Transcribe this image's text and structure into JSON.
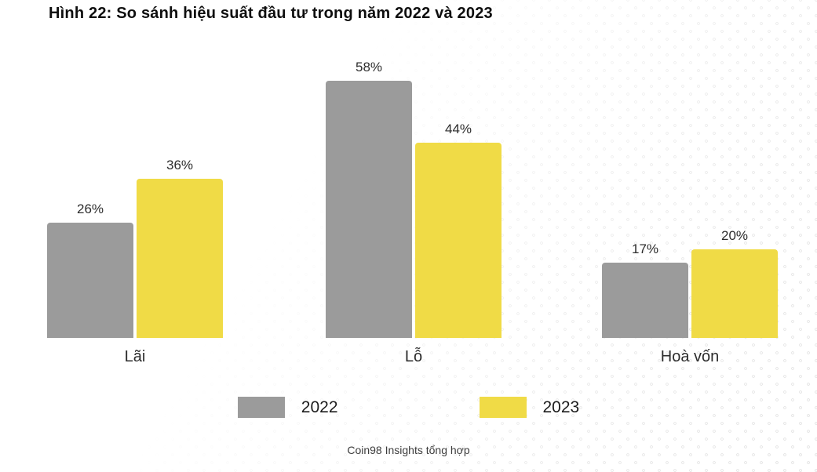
{
  "title": "Hình 22: So sánh hiệu suất đầu tư trong năm 2022 và 2023",
  "source": "Coin98 Insights tổng hợp",
  "colors": {
    "background": "#ffffff",
    "bar_2022": "#9b9b9b",
    "bar_2023": "#f0db46",
    "title_text": "#0e0e0e",
    "label_text": "#2c2c2c",
    "dot_pattern": "#e7e7e7"
  },
  "chart_data": {
    "type": "bar",
    "title": "Hình 22: So sánh hiệu suất đầu tư trong năm 2022 và 2023",
    "categories": [
      "Lãi",
      "Lỗ",
      "Hoà vốn"
    ],
    "series": [
      {
        "name": "2022",
        "color": "#9b9b9b",
        "values": [
          26,
          58,
          17
        ],
        "labels": [
          "26%",
          "58%",
          "17%"
        ]
      },
      {
        "name": "2023",
        "color": "#f0db46",
        "values": [
          36,
          44,
          20
        ],
        "labels": [
          "36%",
          "44%",
          "20%"
        ]
      }
    ],
    "value_suffix": "%",
    "ylim": [
      0,
      60
    ],
    "grid": false,
    "data_labels": true,
    "legend_position": "bottom",
    "source": "Coin98 Insights tổng hợp"
  }
}
